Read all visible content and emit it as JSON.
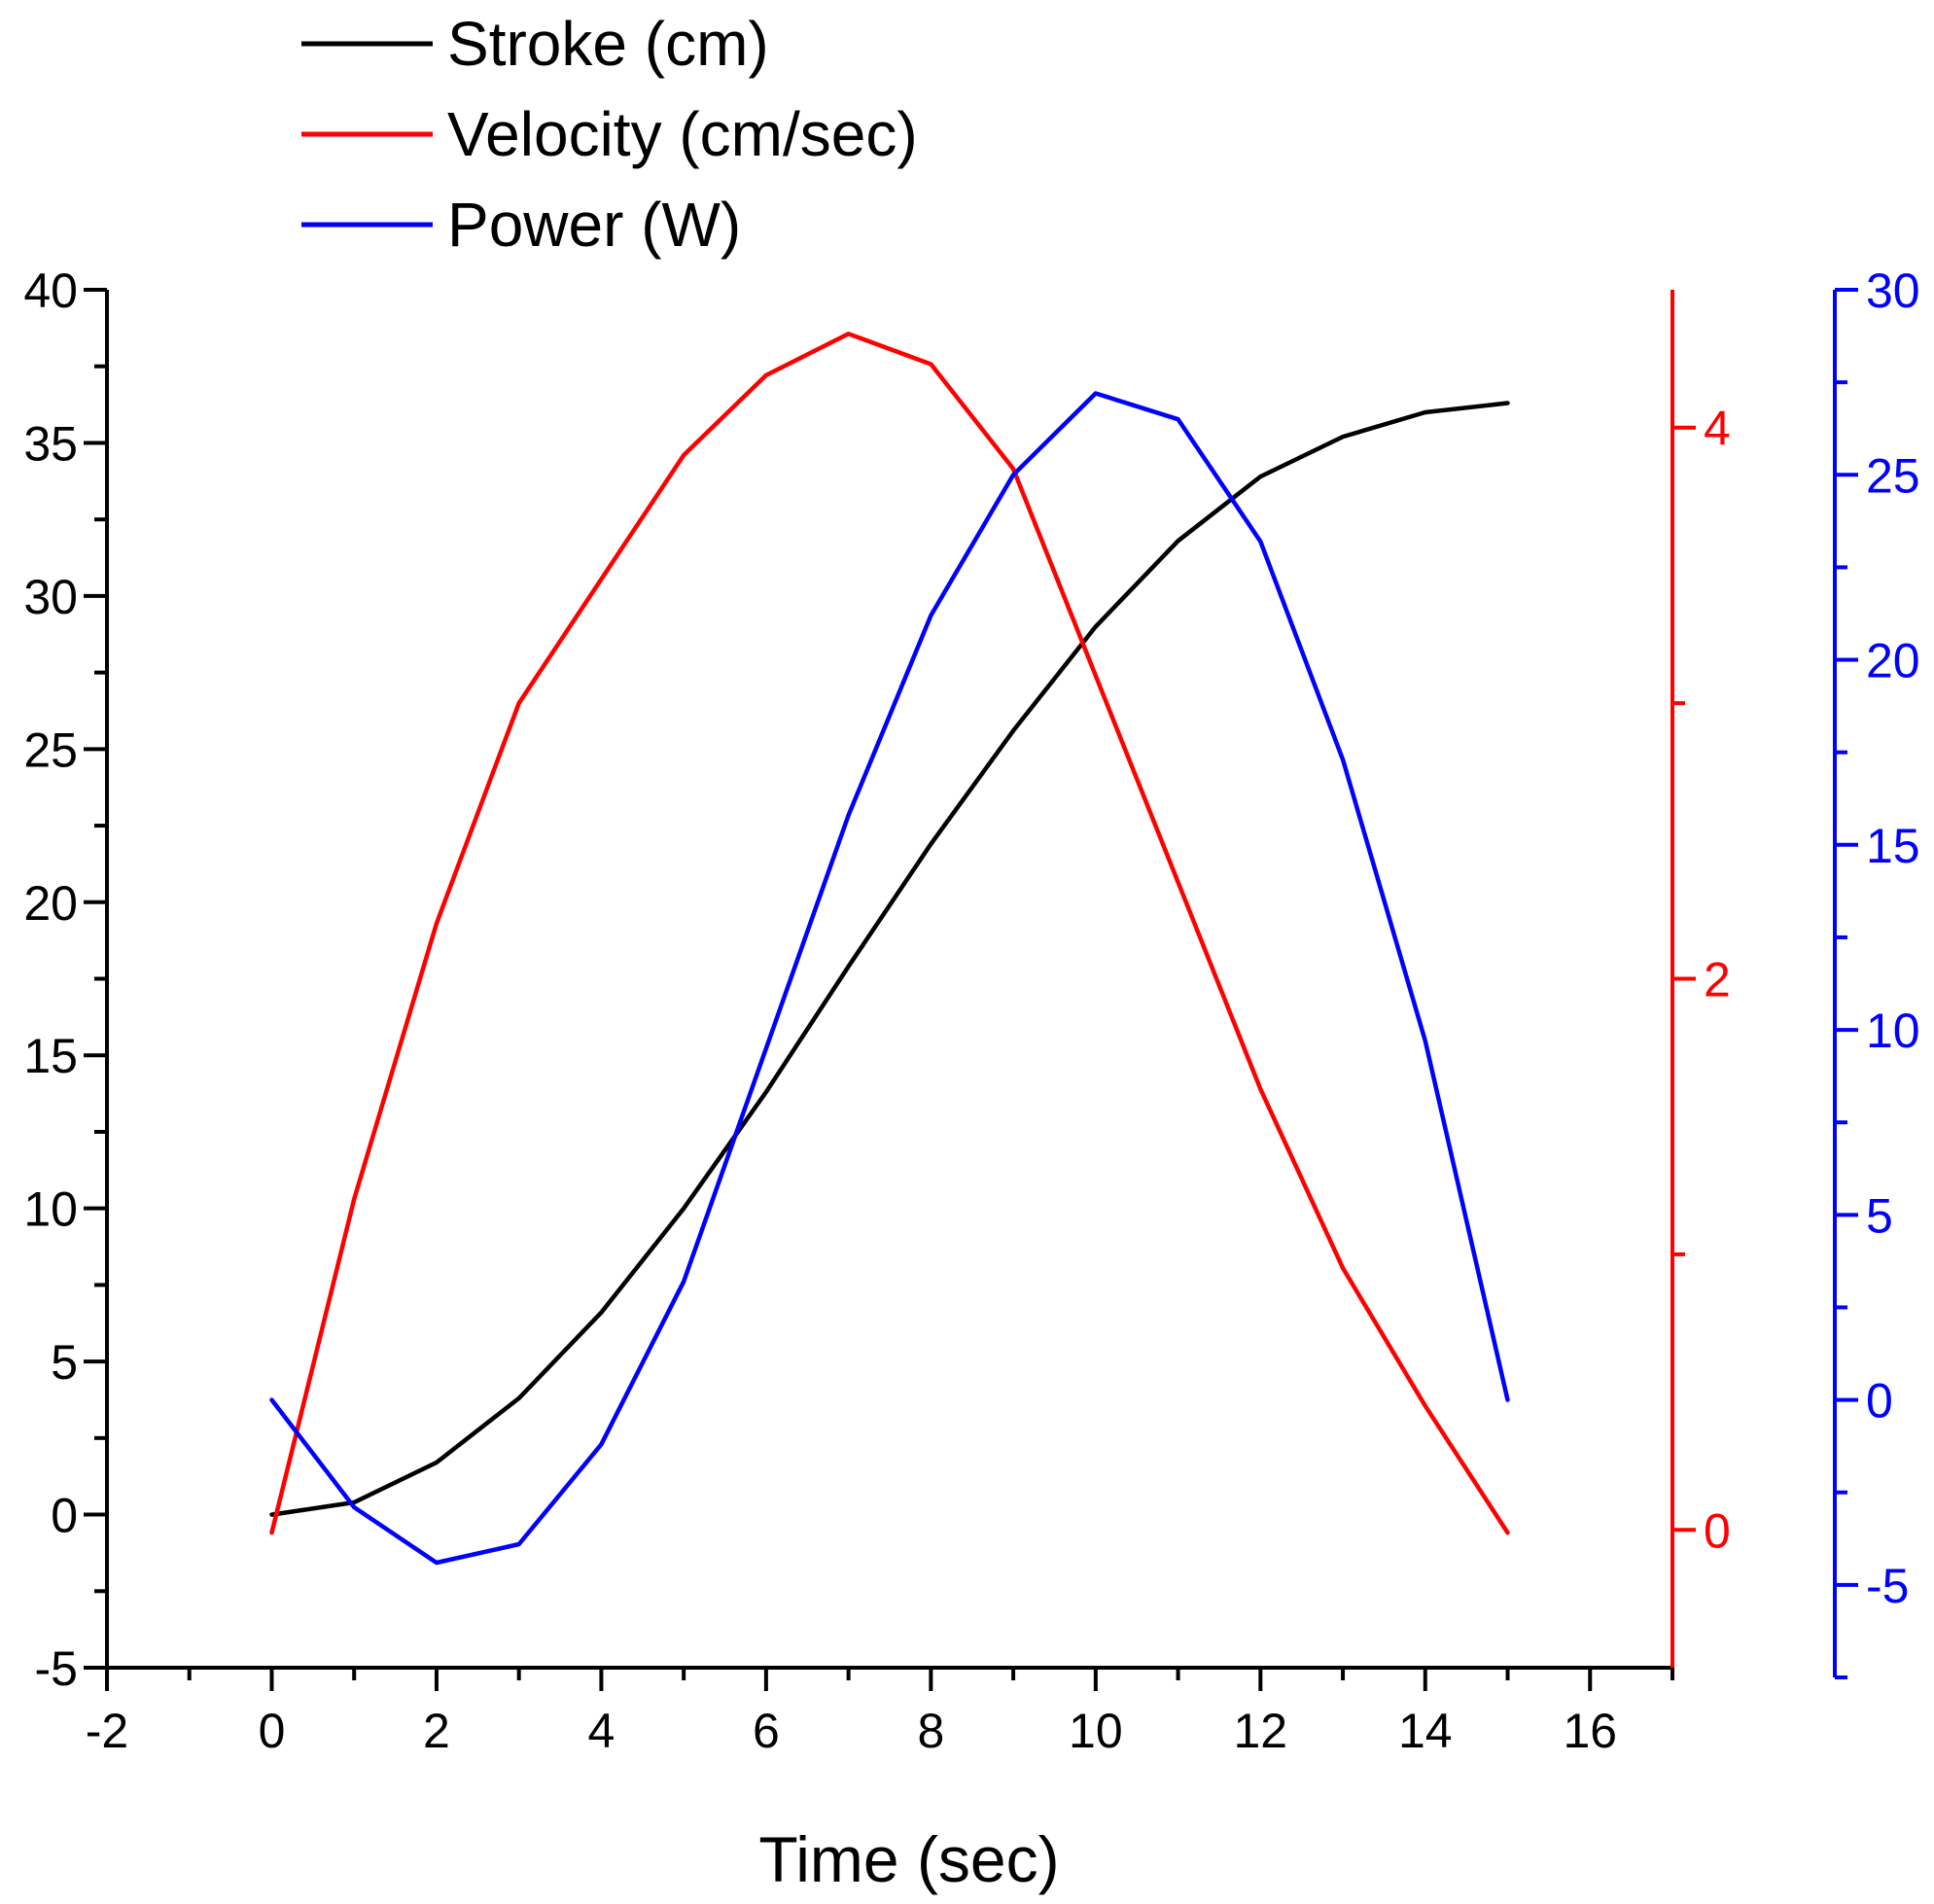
{
  "chart_data": {
    "type": "line",
    "title": "",
    "xlabel": "Time (sec)",
    "xlim": [
      -2,
      17
    ],
    "x_ticks": [
      -2,
      0,
      2,
      4,
      6,
      8,
      10,
      12,
      14,
      16
    ],
    "x": [
      0,
      1,
      2,
      3,
      4,
      5,
      6,
      7,
      8,
      9,
      10,
      11,
      12,
      13,
      14,
      15
    ],
    "axes": {
      "left": {
        "ylim": [
          -5,
          40
        ],
        "ticks": [
          -5,
          0,
          5,
          10,
          15,
          20,
          25,
          30,
          35,
          40
        ],
        "color": "#000000"
      },
      "right_velocity": {
        "ylim": [
          -0.5,
          4.5
        ],
        "ticks": [
          0,
          2,
          4
        ],
        "color": "#ff0000"
      },
      "right_power": {
        "ylim": [
          -7.5,
          30
        ],
        "ticks": [
          -5,
          0,
          5,
          10,
          15,
          20,
          25,
          30
        ],
        "color": "#0000ff"
      }
    },
    "series": [
      {
        "name": "Stroke (cm)",
        "axis": "left",
        "color": "#000000",
        "values": [
          0,
          0.4,
          1.7,
          3.8,
          6.6,
          10.0,
          13.8,
          17.9,
          21.9,
          25.6,
          29.0,
          31.8,
          33.9,
          35.2,
          36.0,
          36.3
        ]
      },
      {
        "name": "Velocity (cm/sec)",
        "axis": "right_velocity",
        "color": "#ff0000",
        "values": [
          -0.01,
          1.2,
          2.2,
          3.0,
          3.45,
          3.9,
          4.19,
          4.34,
          4.23,
          3.85,
          3.1,
          2.35,
          1.6,
          0.95,
          0.45,
          -0.01
        ]
      },
      {
        "name": "Power (W)",
        "axis": "right_power",
        "color": "#0000ff",
        "values": [
          0,
          -2.9,
          -4.4,
          -3.9,
          -1.2,
          3.2,
          9.5,
          15.8,
          21.2,
          25.0,
          27.2,
          26.5,
          23.2,
          17.3,
          9.7,
          0
        ]
      }
    ]
  }
}
